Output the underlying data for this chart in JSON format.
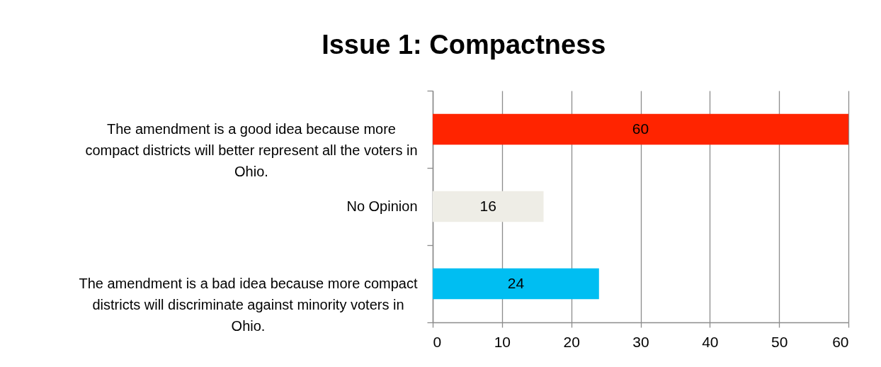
{
  "chart_data": {
    "type": "bar",
    "orientation": "horizontal",
    "title": "Issue 1: Compactness",
    "categories": [
      "The amendment is a good idea because more compact districts will better represent all the voters in Ohio.",
      "No Opinion",
      "The amendment is a bad idea because more compact districts will discriminate against minority voters in Ohio."
    ],
    "values": [
      60,
      16,
      24
    ],
    "colors": [
      "#ff2400",
      "#eeede6",
      "#00bef2"
    ],
    "xlim": [
      0,
      60
    ],
    "xticks": [
      0,
      10,
      20,
      30,
      40,
      50,
      60
    ],
    "grid": "x",
    "data_labels": true
  }
}
